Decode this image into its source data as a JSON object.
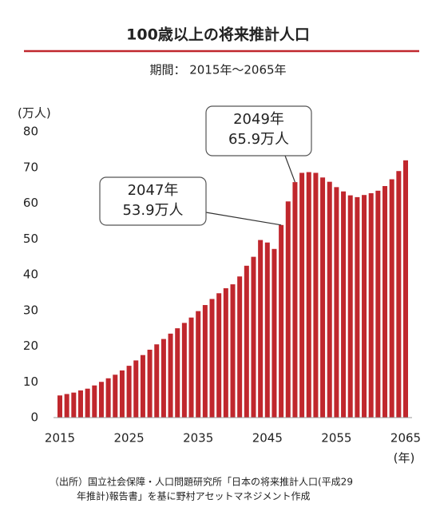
{
  "chart_data": {
    "type": "bar",
    "title": "100歳以上の将来推計人口",
    "subtitle": "期間： 2015年～2065年",
    "y_unit": "(万人)",
    "x_unit": "(年)",
    "source": [
      "（出所）国立社会保障・人口問題研究所「日本の将来推計人口(平成29",
      "年推計)報告書」を基に野村アセットマネジメント作成"
    ],
    "annotations": [
      {
        "lines": [
          "2047年",
          "53.9万人"
        ]
      },
      {
        "lines": [
          "2049年",
          "65.9万人"
        ]
      }
    ],
    "x": [
      2015,
      2016,
      2017,
      2018,
      2019,
      2020,
      2021,
      2022,
      2023,
      2024,
      2025,
      2026,
      2027,
      2028,
      2029,
      2030,
      2031,
      2032,
      2033,
      2034,
      2035,
      2036,
      2037,
      2038,
      2039,
      2040,
      2041,
      2042,
      2043,
      2044,
      2045,
      2046,
      2047,
      2048,
      2049,
      2050,
      2051,
      2052,
      2053,
      2054,
      2055,
      2056,
      2057,
      2058,
      2059,
      2060,
      2061,
      2062,
      2063,
      2064,
      2065
    ],
    "values": [
      6.2,
      6.6,
      7.0,
      7.6,
      8.1,
      9.0,
      10.0,
      11.0,
      12.0,
      13.2,
      14.5,
      16.0,
      17.5,
      19.0,
      20.5,
      22.0,
      23.5,
      25.0,
      26.5,
      28.0,
      29.8,
      31.5,
      33.2,
      34.8,
      36.2,
      37.3,
      39.5,
      42.5,
      45.0,
      49.7,
      49.0,
      47.2,
      53.9,
      60.5,
      65.9,
      68.5,
      68.7,
      68.5,
      67.2,
      66.0,
      64.5,
      63.3,
      62.2,
      61.7,
      62.3,
      62.8,
      63.5,
      64.8,
      66.7,
      69.0,
      72.0
    ],
    "color": "#c0272d",
    "xlim": [
      2015,
      2065
    ],
    "xticks": [
      2015,
      2025,
      2035,
      2045,
      2055,
      2065
    ],
    "ylim": [
      0,
      80
    ],
    "yticks": [
      0,
      10,
      20,
      30,
      40,
      50,
      60,
      70,
      80
    ]
  }
}
